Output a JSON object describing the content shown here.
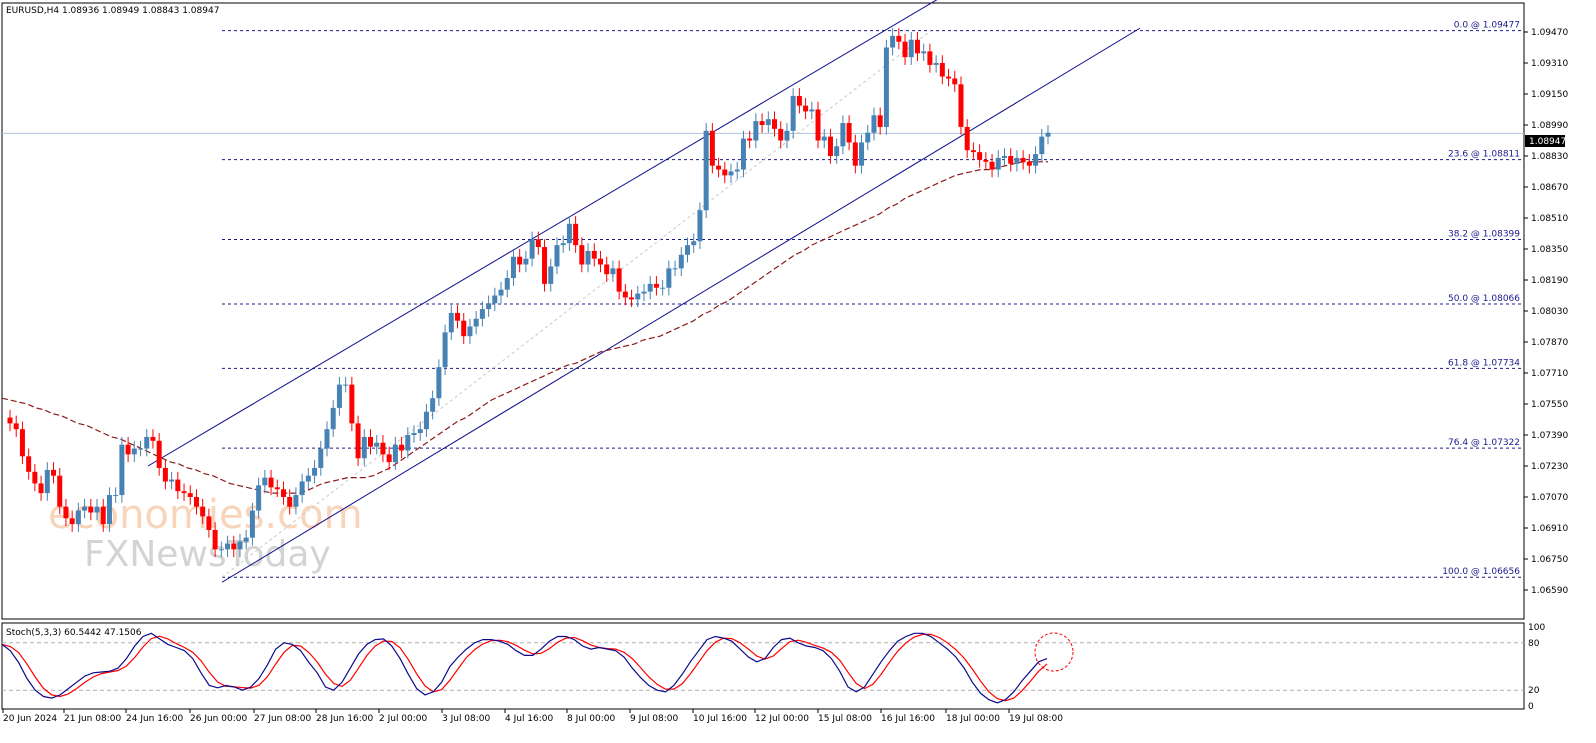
{
  "header": {
    "title": "EURUSD,H4  1.08936 1.08949 1.08843 1.08947"
  },
  "watermark": {
    "brand1": "economies.com",
    "brand2": "FXNewsToday"
  },
  "colors": {
    "bull": "#4682b4",
    "bear": "#ff0000",
    "channel": "#0b0b8c",
    "fib": "#1a1a8c",
    "ma": "#8b1a1a",
    "stoch_main": "#0b0b8c",
    "stoch_signal": "#ff0000",
    "highlight_circle": "#ff0000",
    "price_line": "#b0c4de"
  },
  "price_axis": {
    "ticks": [
      "1.09470",
      "1.09310",
      "1.09150",
      "1.08990",
      "1.08830",
      "1.08670",
      "1.08510",
      "1.08350",
      "1.08190",
      "1.08030",
      "1.07870",
      "1.07710",
      "1.07550",
      "1.07390",
      "1.07230",
      "1.07070",
      "1.06910",
      "1.06750",
      "1.06590"
    ],
    "current_price": "1.08947"
  },
  "time_axis": {
    "labels": [
      "20 Jun 2024",
      "21 Jun 08:00",
      "24 Jun 16:00",
      "26 Jun 00:00",
      "27 Jun 08:00",
      "28 Jun 16:00",
      "2 Jul 00:00",
      "3 Jul 08:00",
      "4 Jul 16:00",
      "8 Jul 00:00",
      "9 Jul 08:00",
      "10 Jul 16:00",
      "12 Jul 00:00",
      "15 Jul 08:00",
      "16 Jul 16:00",
      "18 Jul 00:00",
      "19 Jul 08:00"
    ]
  },
  "stochastic": {
    "label": "Stoch(5,3,3) 60.5442 47.1506",
    "axis_labels": [
      "100",
      "80",
      "20",
      "0"
    ],
    "levels": [
      80,
      20
    ]
  },
  "chart_data": {
    "type": "candlestick",
    "symbol": "EURUSD",
    "timeframe": "H4",
    "ohlc_current": {
      "open": 1.08936,
      "high": 1.08949,
      "low": 1.08843,
      "close": 1.08947
    },
    "ylim": [
      1.0655,
      1.0965
    ],
    "fibonacci": [
      {
        "label": "0.0 @ 1.09477",
        "level": 1.09477
      },
      {
        "label": "23.6 @ 1.08811",
        "level": 1.08811
      },
      {
        "label": "38.2 @ 1.08399",
        "level": 1.08399
      },
      {
        "label": "50.0 @ 1.08066",
        "level": 1.08066
      },
      {
        "label": "61.8 @ 1.07734",
        "level": 1.07734
      },
      {
        "label": "76.4 @ 1.07322",
        "level": 1.07322
      },
      {
        "label": "100.0 @ 1.06656",
        "level": 1.06656
      }
    ],
    "closes": [
      1.0745,
      1.0742,
      1.0728,
      1.072,
      1.0714,
      1.0709,
      1.0721,
      1.0718,
      1.0702,
      1.0696,
      1.0693,
      1.07,
      1.0702,
      1.0699,
      1.0702,
      1.0693,
      1.0708,
      1.0708,
      1.0734,
      1.0729,
      1.0732,
      1.0732,
      1.0738,
      1.0736,
      1.0722,
      1.0715,
      1.0716,
      1.071,
      1.0709,
      1.0707,
      1.0702,
      1.0697,
      1.069,
      1.068,
      1.068,
      1.0683,
      1.068,
      1.0684,
      1.0686,
      1.07,
      1.0713,
      1.0717,
      1.0712,
      1.0711,
      1.0707,
      1.0702,
      1.0708,
      1.0715,
      1.0718,
      1.0722,
      1.0732,
      1.0742,
      1.0753,
      1.0765,
      1.0765,
      1.0745,
      1.0727,
      1.0738,
      1.0733,
      1.0735,
      1.0729,
      1.0725,
      1.0734,
      1.0731,
      1.0739,
      1.074,
      1.0742,
      1.0751,
      1.0758,
      1.0774,
      1.0792,
      1.0802,
      1.0798,
      1.079,
      1.0795,
      1.0799,
      1.0804,
      1.0807,
      1.0811,
      1.0814,
      1.082,
      1.0831,
      1.0827,
      1.083,
      1.084,
      1.0836,
      1.0817,
      1.0826,
      1.0837,
      1.0838,
      1.0848,
      1.0837,
      1.0827,
      1.0834,
      1.083,
      1.0827,
      1.0822,
      1.0825,
      1.0813,
      1.081,
      1.0809,
      1.0812,
      1.0813,
      1.0817,
      1.0815,
      1.0815,
      1.0825,
      1.0825,
      1.0832,
      1.0837,
      1.0839,
      1.0855,
      1.0896,
      1.0878,
      1.0876,
      1.0873,
      1.0875,
      1.0876,
      1.0892,
      1.0891,
      1.0901,
      1.0899,
      1.0902,
      1.0897,
      1.0891,
      1.0896,
      1.0914,
      1.0909,
      1.0906,
      1.0907,
      1.0891,
      1.0893,
      1.0883,
      1.0888,
      1.09,
      1.089,
      1.0878,
      1.089,
      1.0895,
      1.0904,
      1.0898,
      1.0939,
      1.0945,
      1.0942,
      1.0934,
      1.0943,
      1.0936,
      1.0937,
      1.093,
      1.0931,
      1.0924,
      1.0923,
      1.092,
      1.0898,
      1.0886,
      1.0885,
      1.0881,
      1.088,
      1.0876,
      1.0882,
      1.0883,
      1.0879,
      1.0882,
      1.088,
      1.0878,
      1.0884,
      1.0893,
      1.0895
    ],
    "moving_average": [
      1.0758,
      1.0757,
      1.0756,
      1.0755,
      1.0753,
      1.0752,
      1.075,
      1.0749,
      1.0747,
      1.0745,
      1.0744,
      1.0742,
      1.074,
      1.0738,
      1.0737,
      1.0735,
      1.0733,
      1.0731,
      1.0729,
      1.0727,
      1.0725,
      1.0724,
      1.0722,
      1.0721,
      1.0719,
      1.0718,
      1.0716,
      1.0714,
      1.0713,
      1.0712,
      1.0711,
      1.071,
      1.0709,
      1.0709,
      1.0709,
      1.0709,
      1.071,
      1.0712,
      1.0714,
      1.0715,
      1.0716,
      1.0717,
      1.0717,
      1.0717,
      1.0718,
      1.072,
      1.0722,
      1.0725,
      1.0728,
      1.0731,
      1.0734,
      1.0737,
      1.074,
      1.0743,
      1.0746,
      1.0748,
      1.0751,
      1.0754,
      1.0757,
      1.0759,
      1.0761,
      1.0763,
      1.0765,
      1.0767,
      1.0769,
      1.0771,
      1.0773,
      1.0775,
      1.0776,
      1.0778,
      1.078,
      1.0782,
      1.0783,
      1.0784,
      1.0785,
      1.0786,
      1.0788,
      1.0789,
      1.079,
      1.0792,
      1.0794,
      1.0796,
      1.0798,
      1.0801,
      1.0803,
      1.0806,
      1.0808,
      1.0811,
      1.0814,
      1.0817,
      1.082,
      1.0823,
      1.0826,
      1.0829,
      1.0832,
      1.0834,
      1.0837,
      1.0839,
      1.0841,
      1.0843,
      1.0845,
      1.0847,
      1.0849,
      1.0851,
      1.0853,
      1.0856,
      1.0858,
      1.0861,
      1.0863,
      1.0865,
      1.0867,
      1.0869,
      1.0871,
      1.0873,
      1.0874,
      1.0875,
      1.0876,
      1.0876,
      1.0877,
      1.0878,
      1.0879,
      1.088,
      1.088,
      1.088,
      1.088
    ],
    "stochastic_k": [
      78,
      70,
      55,
      35,
      20,
      12,
      10,
      14,
      22,
      30,
      38,
      42,
      43,
      44,
      48,
      60,
      76,
      88,
      92,
      85,
      78,
      74,
      70,
      60,
      42,
      26,
      23,
      26,
      24,
      20,
      24,
      35,
      52,
      72,
      80,
      78,
      70,
      55,
      42,
      24,
      20,
      30,
      48,
      66,
      78,
      84,
      85,
      76,
      60,
      40,
      22,
      14,
      18,
      30,
      50,
      62,
      72,
      80,
      84,
      84,
      82,
      78,
      70,
      64,
      64,
      72,
      82,
      88,
      88,
      84,
      76,
      72,
      74,
      72,
      70,
      62,
      48,
      36,
      26,
      20,
      18,
      26,
      40,
      56,
      70,
      84,
      88,
      86,
      82,
      72,
      62,
      56,
      60,
      74,
      84,
      86,
      80,
      76,
      74,
      70,
      60,
      44,
      24,
      18,
      24,
      40,
      56,
      70,
      82,
      88,
      92,
      92,
      88,
      80,
      72,
      62,
      48,
      30,
      16,
      8,
      4,
      8,
      18,
      32,
      44,
      56,
      60
    ]
  }
}
